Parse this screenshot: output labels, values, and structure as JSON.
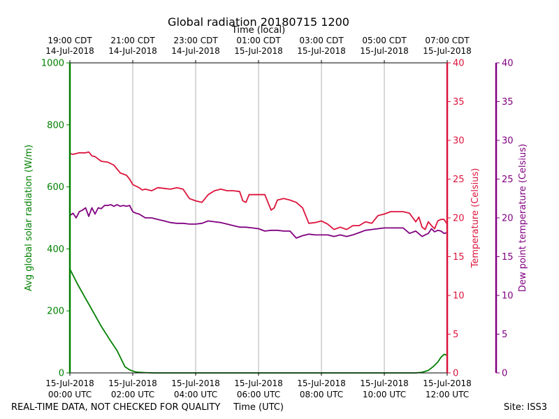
{
  "chart_data": {
    "type": "line",
    "title": "Global radiation 20180715 1200",
    "top_axis_label": "Time (local)",
    "xlabel": "Time (UTC)",
    "footer_left": "REAL-TIME DATA, NOT CHECKED FOR QUALITY",
    "footer_right": "Site: ISS3",
    "x_range_hours": [
      0,
      12
    ],
    "x_ticks_bottom": [
      {
        "h": 0,
        "line1": "15-Jul-2018",
        "line2": "00:00 UTC"
      },
      {
        "h": 2,
        "line1": "15-Jul-2018",
        "line2": "02:00 UTC"
      },
      {
        "h": 4,
        "line1": "15-Jul-2018",
        "line2": "04:00 UTC"
      },
      {
        "h": 6,
        "line1": "15-Jul-2018",
        "line2": "06:00 UTC"
      },
      {
        "h": 8,
        "line1": "15-Jul-2018",
        "line2": "08:00 UTC"
      },
      {
        "h": 10,
        "line1": "15-Jul-2018",
        "line2": "10:00 UTC"
      },
      {
        "h": 12,
        "line1": "15-Jul-2018",
        "line2": "12:00 UTC"
      }
    ],
    "x_ticks_top": [
      {
        "h": 0,
        "line1": "19:00 CDT",
        "line2": "14-Jul-2018"
      },
      {
        "h": 2,
        "line1": "21:00 CDT",
        "line2": "14-Jul-2018"
      },
      {
        "h": 4,
        "line1": "23:00 CDT",
        "line2": "14-Jul-2018"
      },
      {
        "h": 6,
        "line1": "01:00 CDT",
        "line2": "15-Jul-2018"
      },
      {
        "h": 8,
        "line1": "03:00 CDT",
        "line2": "15-Jul-2018"
      },
      {
        "h": 10,
        "line1": "05:00 CDT",
        "line2": "15-Jul-2018"
      },
      {
        "h": 12,
        "line1": "07:00 CDT",
        "line2": "15-Jul-2018"
      }
    ],
    "axes": {
      "radiation": {
        "label": "Avg global solar radiation (W/m)",
        "color": "#008000",
        "ylim": [
          0,
          1000
        ],
        "ticks": [
          0,
          200,
          400,
          600,
          800,
          1000
        ]
      },
      "temperature": {
        "label": "Temperature (Celsius)",
        "color": "#dc143c",
        "ylim": [
          0,
          40
        ],
        "ticks": [
          0,
          5,
          10,
          15,
          20,
          25,
          30,
          35,
          40
        ]
      },
      "dewpoint": {
        "label": "Dew point temperature (Celsius)",
        "color": "#800080",
        "ylim": [
          0,
          40
        ],
        "ticks": [
          0,
          5,
          10,
          15,
          20,
          25,
          30,
          35,
          40
        ]
      }
    },
    "series": [
      {
        "name": "Global radiation",
        "axis": "radiation",
        "x": [
          0,
          0.25,
          0.5,
          0.75,
          1.0,
          1.25,
          1.5,
          1.75,
          1.9,
          2.0,
          2.1,
          2.2,
          2.4,
          2.7,
          3,
          4,
          5,
          6,
          7,
          8,
          9,
          10,
          10.5,
          11,
          11.2,
          11.4,
          11.55,
          11.7,
          11.8,
          11.9,
          12
        ],
        "values": [
          335,
          285,
          240,
          195,
          150,
          110,
          72,
          20,
          10,
          6,
          3,
          2,
          1,
          0,
          0,
          0,
          0,
          0,
          0,
          0,
          0,
          0,
          0,
          0,
          2,
          8,
          20,
          35,
          50,
          60,
          57
        ]
      },
      {
        "name": "Temperature",
        "axis": "temperature",
        "x": [
          0,
          0.1,
          0.3,
          0.5,
          0.6,
          0.7,
          0.8,
          1.0,
          1.2,
          1.4,
          1.6,
          1.8,
          1.9,
          2.0,
          2.1,
          2.2,
          2.3,
          2.4,
          2.6,
          2.8,
          3.0,
          3.2,
          3.4,
          3.6,
          3.8,
          4.0,
          4.2,
          4.4,
          4.6,
          4.8,
          5.0,
          5.2,
          5.4,
          5.5,
          5.6,
          5.7,
          5.8,
          6.0,
          6.2,
          6.4,
          6.5,
          6.6,
          6.8,
          7.0,
          7.2,
          7.4,
          7.6,
          7.8,
          8.0,
          8.2,
          8.4,
          8.6,
          8.8,
          9.0,
          9.2,
          9.4,
          9.6,
          9.8,
          10.0,
          10.2,
          10.4,
          10.6,
          10.8,
          11.0,
          11.1,
          11.2,
          11.3,
          11.4,
          11.5,
          11.6,
          11.7,
          11.8,
          11.9,
          12.0
        ],
        "values": [
          28.3,
          28.2,
          28.4,
          28.4,
          28.5,
          28.0,
          27.9,
          27.3,
          27.2,
          26.8,
          25.8,
          25.5,
          25.0,
          24.3,
          24.1,
          23.9,
          23.6,
          23.7,
          23.5,
          23.9,
          23.8,
          23.7,
          23.9,
          23.7,
          22.5,
          22.2,
          22.0,
          23.0,
          23.5,
          23.7,
          23.5,
          23.5,
          23.4,
          22.2,
          22.0,
          23.0,
          23.0,
          23.0,
          23.0,
          21.0,
          21.3,
          22.3,
          22.5,
          22.3,
          22.0,
          21.3,
          19.3,
          19.4,
          19.6,
          19.2,
          18.5,
          18.8,
          18.5,
          19.0,
          19.0,
          19.5,
          19.3,
          20.3,
          20.5,
          20.8,
          20.8,
          20.8,
          20.6,
          19.5,
          20.1,
          18.8,
          18.5,
          19.5,
          19.0,
          18.6,
          19.6,
          19.8,
          19.8,
          19.2
        ]
      },
      {
        "name": "Dew point temperature",
        "axis": "dewpoint",
        "x": [
          0,
          0.1,
          0.2,
          0.3,
          0.4,
          0.5,
          0.6,
          0.7,
          0.8,
          0.9,
          1.0,
          1.1,
          1.2,
          1.3,
          1.4,
          1.5,
          1.6,
          1.7,
          1.8,
          1.9,
          2.0,
          2.1,
          2.2,
          2.4,
          2.6,
          2.8,
          3.0,
          3.2,
          3.4,
          3.6,
          3.8,
          4.0,
          4.2,
          4.4,
          4.6,
          4.8,
          5.0,
          5.2,
          5.4,
          5.6,
          5.8,
          6.0,
          6.2,
          6.4,
          6.6,
          6.8,
          7.0,
          7.2,
          7.4,
          7.6,
          7.8,
          8.0,
          8.2,
          8.4,
          8.6,
          8.8,
          9.0,
          9.2,
          9.4,
          9.6,
          9.8,
          10.0,
          10.2,
          10.4,
          10.6,
          10.8,
          11.0,
          11.2,
          11.4,
          11.5,
          11.6,
          11.7,
          11.8,
          11.9,
          12.0
        ],
        "values": [
          20.3,
          20.6,
          20.0,
          20.8,
          21.0,
          21.3,
          20.2,
          21.3,
          20.5,
          21.3,
          21.2,
          21.6,
          21.6,
          21.7,
          21.5,
          21.7,
          21.5,
          21.6,
          21.5,
          21.6,
          20.8,
          20.6,
          20.5,
          20.0,
          20.0,
          19.8,
          19.6,
          19.4,
          19.3,
          19.3,
          19.2,
          19.2,
          19.3,
          19.6,
          19.5,
          19.4,
          19.2,
          19.0,
          18.8,
          18.8,
          18.7,
          18.6,
          18.3,
          18.4,
          18.4,
          18.3,
          18.3,
          17.4,
          17.7,
          17.9,
          17.8,
          17.8,
          17.8,
          17.6,
          17.8,
          17.6,
          17.8,
          18.1,
          18.4,
          18.5,
          18.6,
          18.7,
          18.7,
          18.7,
          18.7,
          18.0,
          18.3,
          17.6,
          18.0,
          18.6,
          18.2,
          18.4,
          18.3,
          18.0,
          18.1
        ]
      }
    ]
  }
}
